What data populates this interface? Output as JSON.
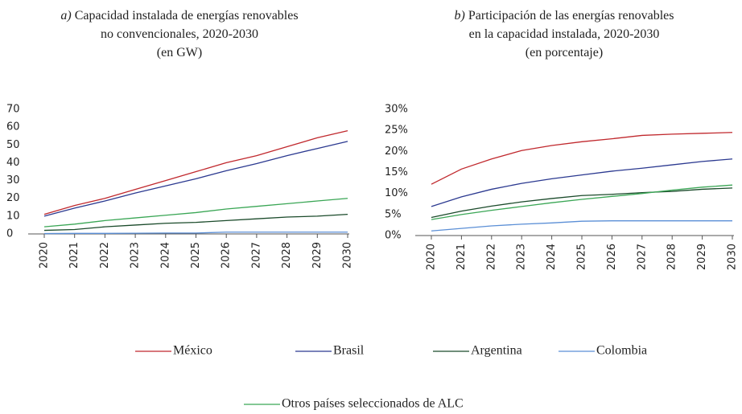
{
  "chart_data": [
    {
      "type": "line",
      "panel": "a)",
      "title": [
        "Capacidad instalada de energías renovables",
        "no convencionales, 2020-2030",
        "(en GW)"
      ],
      "categories": [
        "2020",
        "2021",
        "2022",
        "2023",
        "2024",
        "2025",
        "2026",
        "2027",
        "2028",
        "2029",
        "2030"
      ],
      "ylim": [
        0,
        70
      ],
      "yticks": [
        0,
        10,
        20,
        30,
        40,
        50,
        60,
        70
      ],
      "series": [
        {
          "name": "México",
          "color": "#c0282d",
          "values": [
            11,
            16,
            20,
            25,
            30,
            35,
            40,
            44,
            49,
            54,
            58
          ]
        },
        {
          "name": "Brasil",
          "color": "#2b3990",
          "values": [
            10,
            14.5,
            18.5,
            23,
            27,
            31,
            35.5,
            39.5,
            44,
            48,
            52
          ]
        },
        {
          "name": "Argentina",
          "color": "#1a4a2a",
          "values": [
            2,
            2.5,
            4,
            5,
            6,
            6.5,
            7.5,
            8.5,
            9.5,
            10,
            11
          ]
        },
        {
          "name": "Colombia",
          "color": "#5b8fd6",
          "values": [
            0.2,
            0.3,
            0.3,
            0.4,
            0.5,
            0.5,
            1,
            1,
            1,
            1,
            1
          ]
        },
        {
          "name": "Otros países seleccionados de ALC",
          "color": "#3aa655",
          "values": [
            4,
            5.5,
            7.5,
            9,
            10.5,
            12,
            14,
            15.5,
            17,
            18.5,
            20
          ]
        }
      ]
    },
    {
      "type": "line",
      "panel": "b)",
      "title": [
        "Participación de las energías renovables",
        "en la capacidad instalada, 2020-2030",
        "(en porcentaje)"
      ],
      "categories": [
        "2020",
        "2021",
        "2022",
        "2023",
        "2024",
        "2025",
        "2026",
        "2027",
        "2028",
        "2029",
        "2030"
      ],
      "ylim": [
        0,
        30
      ],
      "yticks": [
        {
          "value": 0,
          "label": "0%"
        },
        {
          "value": 5,
          "label": "5%"
        },
        {
          "value": 10,
          "label": "10%"
        },
        {
          "value": 15,
          "label": "15%"
        },
        {
          "value": 20,
          "label": "20%"
        },
        {
          "value": 25,
          "label": "25%"
        },
        {
          "value": 30,
          "label": "30%"
        }
      ],
      "series": [
        {
          "name": "México",
          "color": "#c0282d",
          "values": [
            12.2,
            15.8,
            18.2,
            20.2,
            21.4,
            22.3,
            23,
            23.8,
            24.1,
            24.3,
            24.5
          ]
        },
        {
          "name": "Brasil",
          "color": "#2b3990",
          "values": [
            6.9,
            9.2,
            11,
            12.4,
            13.5,
            14.4,
            15.3,
            16,
            16.8,
            17.6,
            18.2
          ]
        },
        {
          "name": "Argentina",
          "color": "#1a4a2a",
          "values": [
            4.3,
            5.8,
            7,
            8,
            8.8,
            9.5,
            9.8,
            10.2,
            10.5,
            11,
            11.3
          ]
        },
        {
          "name": "Colombia",
          "color": "#5b8fd6",
          "values": [
            1.1,
            1.7,
            2.3,
            2.7,
            3,
            3.4,
            3.5,
            3.5,
            3.5,
            3.5,
            3.5
          ]
        },
        {
          "name": "Otros países seleccionados de ALC",
          "color": "#3aa655",
          "values": [
            3.8,
            5,
            6,
            6.9,
            7.8,
            8.6,
            9.3,
            10,
            10.8,
            11.5,
            12
          ]
        }
      ]
    }
  ]
}
